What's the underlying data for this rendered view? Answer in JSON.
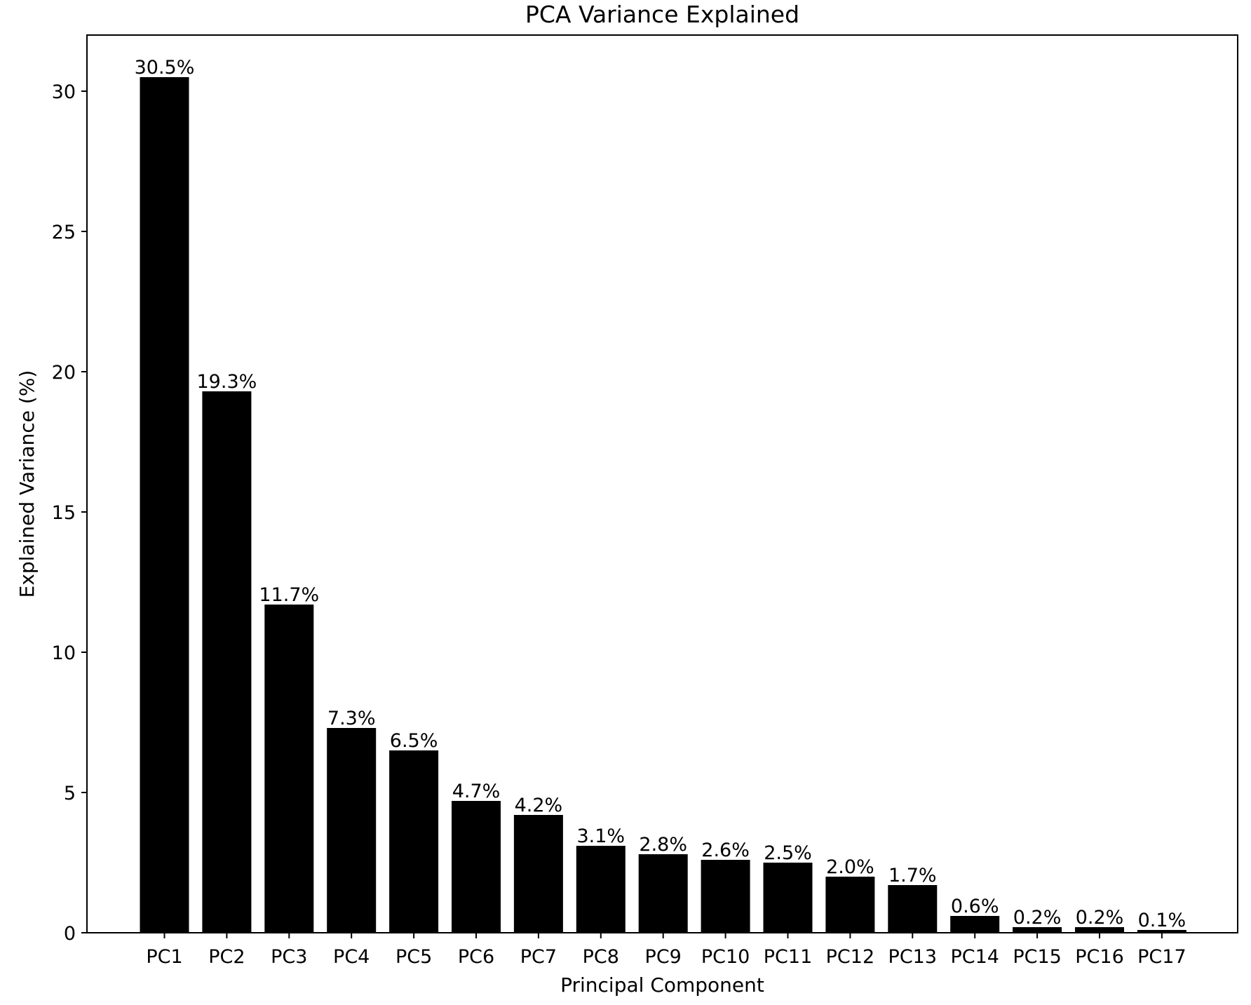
{
  "chart_data": {
    "type": "bar",
    "title": "PCA Variance Explained",
    "xlabel": "Principal Component",
    "ylabel": "Explained Variance (%)",
    "categories": [
      "PC1",
      "PC2",
      "PC3",
      "PC4",
      "PC5",
      "PC6",
      "PC7",
      "PC8",
      "PC9",
      "PC10",
      "PC11",
      "PC12",
      "PC13",
      "PC14",
      "PC15",
      "PC16",
      "PC17"
    ],
    "values": [
      30.5,
      19.3,
      11.7,
      7.3,
      6.5,
      4.7,
      4.2,
      3.1,
      2.8,
      2.6,
      2.5,
      2.0,
      1.7,
      0.6,
      0.2,
      0.2,
      0.1
    ],
    "data_labels": [
      "30.5%",
      "19.3%",
      "11.7%",
      "7.3%",
      "6.5%",
      "4.7%",
      "4.2%",
      "3.1%",
      "2.8%",
      "2.6%",
      "2.5%",
      "2.0%",
      "1.7%",
      "0.6%",
      "0.2%",
      "0.2%",
      "0.1%"
    ],
    "yticks": [
      0,
      5,
      10,
      15,
      20,
      25,
      30
    ],
    "ylim": [
      0,
      32.0
    ],
    "grid": false,
    "bar_color": "#000000"
  }
}
